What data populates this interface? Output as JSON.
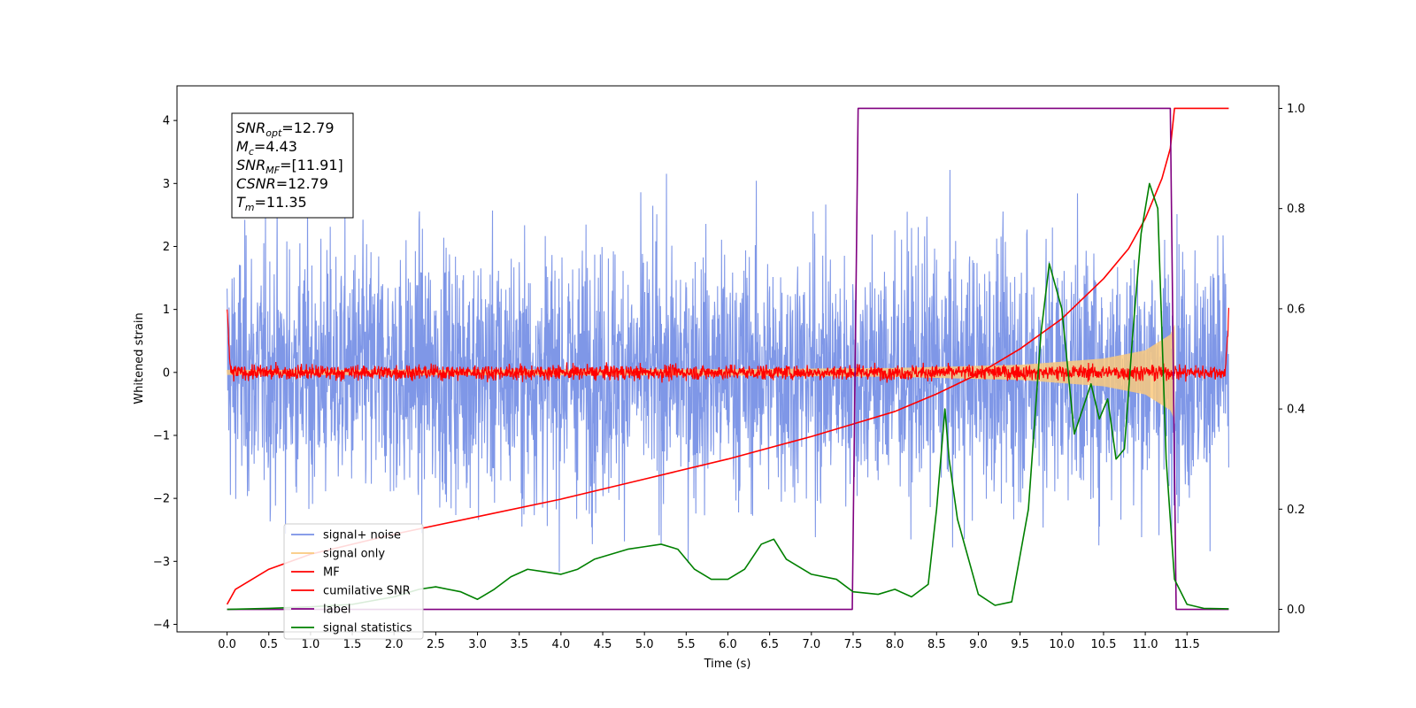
{
  "chart_data": {
    "type": "line",
    "xlabel": "Time (s)",
    "ylabel": "Whitened strain",
    "xlim": [
      -0.6,
      12.6
    ],
    "ylim": [
      -4.12,
      4.55
    ],
    "y2lim": [
      -0.045,
      1.045
    ],
    "x_ticks": [
      "0.0",
      "0.5",
      "1.0",
      "1.5",
      "2.0",
      "2.5",
      "3.0",
      "3.5",
      "4.0",
      "4.5",
      "5.0",
      "5.5",
      "6.0",
      "6.5",
      "7.0",
      "7.5",
      "8.0",
      "8.5",
      "9.0",
      "9.5",
      "10.0",
      "10.5",
      "11.0",
      "11.5"
    ],
    "y_ticks": [
      "4",
      "3",
      "2",
      "1",
      "0",
      "−1",
      "−2",
      "−3",
      "−4"
    ],
    "y2_ticks": [
      "1.0",
      "0.8",
      "0.6",
      "0.4",
      "0.2",
      "0.0"
    ],
    "grid": false,
    "legend_position": "lower-left",
    "annotation": [
      {
        "base": "SNR",
        "sub": "opt",
        "rest": "=12.79"
      },
      {
        "base": "M",
        "sub": "c",
        "rest": "=4.43"
      },
      {
        "base": "SNR",
        "sub": "MF",
        "rest": "=[11.91]"
      },
      {
        "base": "CSNR",
        "sub": "",
        "rest": "=12.79"
      },
      {
        "base": "T",
        "sub": "m",
        "rest": "=11.35"
      }
    ],
    "series": [
      {
        "name": "signal+ noise",
        "color": "#7891e6",
        "axis": "left",
        "noise_std": 1.0,
        "x_range": [
          0.0,
          12.0
        ]
      },
      {
        "name": "signal only",
        "color": "#f9c97e",
        "axis": "left",
        "envelope": {
          "x": [
            0.0,
            6.0,
            8.0,
            9.5,
            10.5,
            11.0,
            11.3,
            11.35
          ],
          "amp": [
            0.04,
            0.05,
            0.07,
            0.12,
            0.22,
            0.35,
            0.6,
            0.75
          ]
        }
      },
      {
        "name": "MF",
        "color": "#ff0000",
        "axis": "left",
        "noise_std": 0.06,
        "x_range": [
          0.0,
          12.0
        ],
        "edge_values": [
          1.0,
          0.95
        ]
      },
      {
        "name": "cumilative SNR",
        "color": "#ff0000",
        "axis": "right",
        "x": [
          0.0,
          0.1,
          0.3,
          0.5,
          1.0,
          2.0,
          3.0,
          4.0,
          5.0,
          6.0,
          7.0,
          7.5,
          8.0,
          8.5,
          9.0,
          9.5,
          10.0,
          10.5,
          10.8,
          11.0,
          11.2,
          11.3,
          11.35,
          12.0
        ],
        "y": [
          0.01,
          0.04,
          0.06,
          0.08,
          0.11,
          0.15,
          0.185,
          0.22,
          0.26,
          0.3,
          0.345,
          0.37,
          0.395,
          0.43,
          0.47,
          0.52,
          0.58,
          0.66,
          0.72,
          0.78,
          0.86,
          0.92,
          1.0,
          1.0
        ]
      },
      {
        "name": "label",
        "color": "#800080",
        "axis": "right",
        "x": [
          0.0,
          7.49,
          7.56,
          11.3,
          11.37,
          12.0
        ],
        "y": [
          0.0,
          0.0,
          1.0,
          1.0,
          0.0,
          0.0
        ]
      },
      {
        "name": "signal statistics",
        "color": "#008000",
        "axis": "right",
        "x": [
          0.0,
          0.5,
          1.0,
          1.5,
          2.0,
          2.3,
          2.5,
          2.8,
          3.0,
          3.2,
          3.4,
          3.6,
          3.8,
          4.0,
          4.2,
          4.4,
          4.6,
          4.8,
          5.0,
          5.2,
          5.4,
          5.6,
          5.8,
          6.0,
          6.2,
          6.4,
          6.55,
          6.7,
          7.0,
          7.3,
          7.5,
          7.8,
          8.0,
          8.2,
          8.4,
          8.5,
          8.6,
          8.65,
          8.75,
          8.85,
          9.0,
          9.2,
          9.4,
          9.6,
          9.75,
          9.85,
          10.0,
          10.15,
          10.25,
          10.35,
          10.45,
          10.55,
          10.65,
          10.75,
          10.85,
          10.95,
          11.05,
          11.15,
          11.25,
          11.35,
          11.5,
          11.7,
          12.0
        ],
        "y": [
          0.0,
          0.002,
          0.005,
          0.01,
          0.025,
          0.04,
          0.045,
          0.035,
          0.02,
          0.04,
          0.065,
          0.08,
          0.075,
          0.07,
          0.08,
          0.1,
          0.11,
          0.12,
          0.125,
          0.13,
          0.12,
          0.08,
          0.06,
          0.06,
          0.08,
          0.13,
          0.14,
          0.1,
          0.07,
          0.06,
          0.035,
          0.03,
          0.04,
          0.025,
          0.05,
          0.2,
          0.4,
          0.3,
          0.18,
          0.12,
          0.03,
          0.008,
          0.015,
          0.2,
          0.55,
          0.69,
          0.6,
          0.35,
          0.4,
          0.45,
          0.38,
          0.42,
          0.3,
          0.32,
          0.55,
          0.75,
          0.85,
          0.8,
          0.3,
          0.06,
          0.01,
          0.002,
          0.001
        ]
      }
    ]
  }
}
